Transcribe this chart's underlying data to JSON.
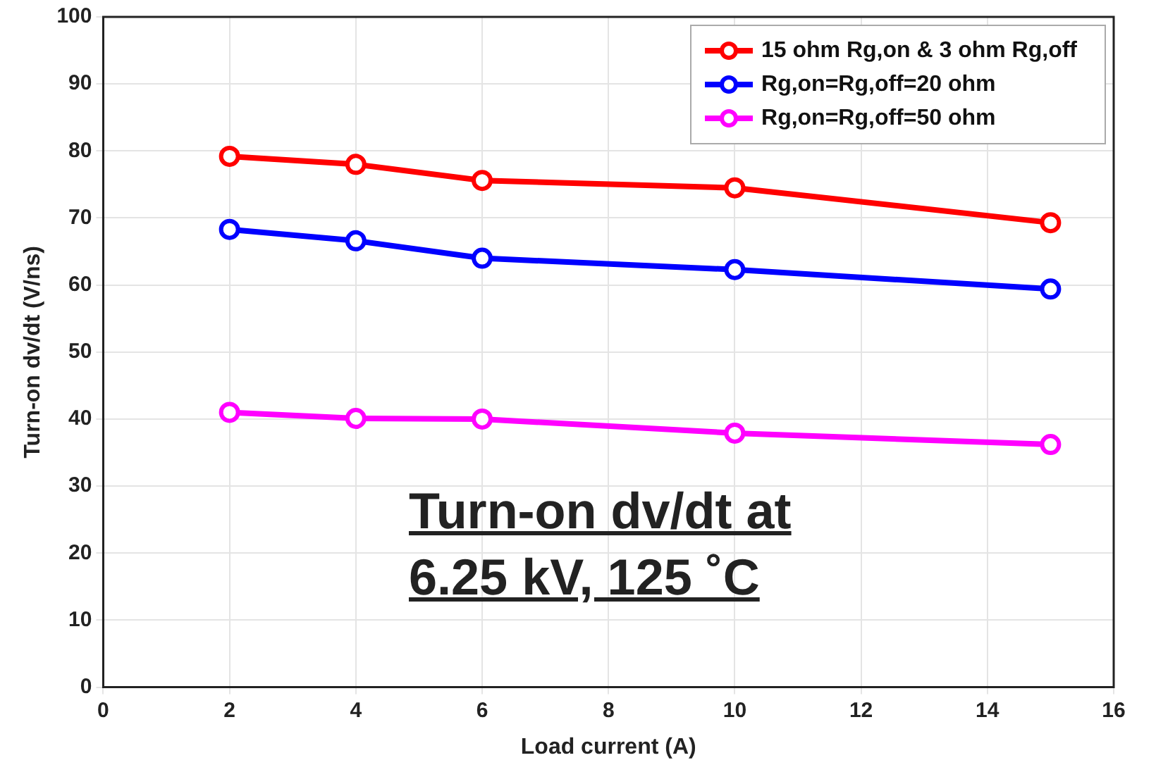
{
  "chart_data": {
    "type": "line",
    "xlabel": "Load current (A)",
    "ylabel": "Turn-on dv/dt (V/ns)",
    "x": [
      2,
      4,
      6,
      10,
      15
    ],
    "series": [
      {
        "name": "15 ohm Rg,on & 3 ohm Rg,off",
        "color": "#ff0000",
        "values": [
          79.2,
          78.0,
          75.6,
          74.5,
          69.3
        ]
      },
      {
        "name": "Rg,on=Rg,off=20 ohm",
        "color": "#0000ff",
        "values": [
          68.3,
          66.6,
          64.0,
          62.3,
          59.4
        ]
      },
      {
        "name": "Rg,on=Rg,off=50 ohm",
        "color": "#ff00ff",
        "values": [
          41.0,
          40.1,
          40.0,
          37.9,
          36.2
        ]
      }
    ],
    "xlim": [
      0,
      16
    ],
    "xticks": [
      0,
      2,
      4,
      6,
      8,
      10,
      12,
      14,
      16
    ],
    "ylim": [
      0,
      100
    ],
    "yticks": [
      0,
      10,
      20,
      30,
      40,
      50,
      60,
      70,
      80,
      90,
      100
    ],
    "grid": true,
    "legend": "top right",
    "marker": "circle",
    "line_style": "solid",
    "annotations": [
      "Turn-on dv/dt at\n6.25 kV, 125 ˚C"
    ]
  }
}
